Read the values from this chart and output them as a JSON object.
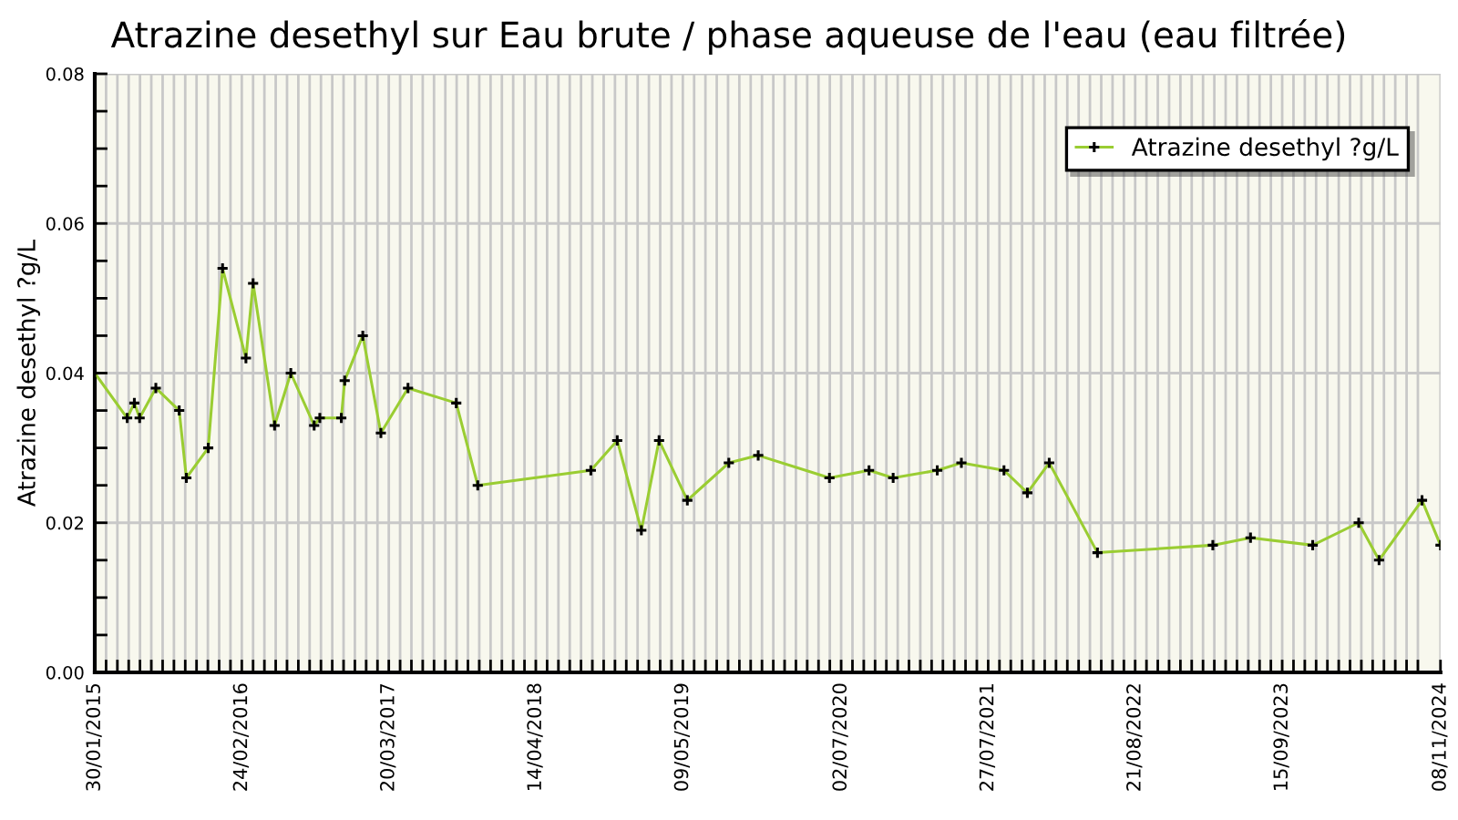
{
  "chart_data": {
    "type": "line",
    "title": "Atrazine desethyl sur Eau brute / phase aqueuse de l'eau (eau filtrée)",
    "ylabel": "Atrazine desethyl ?g/L",
    "x": [
      "2015-01-30",
      "2015-04-26",
      "2015-05-15",
      "2015-05-29",
      "2015-07-11",
      "2015-09-11",
      "2015-09-30",
      "2015-11-27",
      "2016-01-04",
      "2016-03-06",
      "2016-03-25",
      "2016-05-21",
      "2016-07-03",
      "2016-09-03",
      "2016-09-18",
      "2016-11-14",
      "2016-11-23",
      "2017-01-10",
      "2017-02-27",
      "2017-05-10",
      "2017-09-15",
      "2017-11-11",
      "2018-09-07",
      "2018-11-16",
      "2019-01-19",
      "2019-03-07",
      "2019-05-21",
      "2019-09-08",
      "2019-11-25",
      "2020-06-01",
      "2020-09-14",
      "2020-11-17",
      "2021-03-14",
      "2021-05-17",
      "2021-09-07",
      "2021-11-08",
      "2022-01-05",
      "2022-05-13",
      "2023-03-15",
      "2023-06-23",
      "2023-12-05",
      "2024-04-05",
      "2024-05-29",
      "2024-09-20",
      "2024-11-08"
    ],
    "series": [
      {
        "name": "Atrazine desethyl ?g/L",
        "color": "#9acd32",
        "values": [
          0.04,
          0.034,
          0.036,
          0.034,
          0.038,
          0.035,
          0.026,
          0.03,
          0.054,
          0.042,
          0.052,
          0.033,
          0.04,
          0.033,
          0.034,
          0.034,
          0.039,
          0.045,
          0.032,
          0.038,
          0.036,
          0.025,
          0.027,
          0.031,
          0.019,
          0.031,
          0.023,
          0.028,
          0.029,
          0.026,
          0.027,
          0.026,
          0.027,
          0.028,
          0.027,
          0.024,
          0.028,
          0.016,
          0.017,
          0.018,
          0.017,
          0.02,
          0.015,
          0.023,
          0.017
        ]
      }
    ],
    "marker": "cross",
    "line_style": "solid",
    "legend": "top right",
    "grid": true,
    "xlim": [
      "2015-01-30",
      "2024-11-08"
    ],
    "xticks": [
      {
        "value": "2015-01-30",
        "label": "30/01/2015"
      },
      {
        "value": "2015-03-01",
        "label": null
      },
      {
        "value": "2015-03-31",
        "label": null
      },
      {
        "value": "2015-04-30",
        "label": null
      },
      {
        "value": "2015-05-30",
        "label": null
      },
      {
        "value": "2015-06-29",
        "label": null
      },
      {
        "value": "2015-07-29",
        "label": null
      },
      {
        "value": "2015-08-28",
        "label": null
      },
      {
        "value": "2015-09-27",
        "label": null
      },
      {
        "value": "2015-10-27",
        "label": null
      },
      {
        "value": "2015-11-26",
        "label": null
      },
      {
        "value": "2015-12-26",
        "label": null
      },
      {
        "value": "2016-01-25",
        "label": null
      },
      {
        "value": "2016-02-24",
        "label": "24/02/2016"
      },
      {
        "value": "2016-03-25",
        "label": null
      },
      {
        "value": "2016-04-24",
        "label": null
      },
      {
        "value": "2016-05-24",
        "label": null
      },
      {
        "value": "2016-06-23",
        "label": null
      },
      {
        "value": "2016-07-23",
        "label": null
      },
      {
        "value": "2016-08-22",
        "label": null
      },
      {
        "value": "2016-09-21",
        "label": null
      },
      {
        "value": "2016-10-21",
        "label": null
      },
      {
        "value": "2016-11-20",
        "label": null
      },
      {
        "value": "2016-12-20",
        "label": null
      },
      {
        "value": "2017-01-19",
        "label": null
      },
      {
        "value": "2017-02-18",
        "label": null
      },
      {
        "value": "2017-03-20",
        "label": "20/03/2017"
      },
      {
        "value": "2017-04-19",
        "label": null
      },
      {
        "value": "2017-05-19",
        "label": null
      },
      {
        "value": "2017-06-18",
        "label": null
      },
      {
        "value": "2017-07-18",
        "label": null
      },
      {
        "value": "2017-08-17",
        "label": null
      },
      {
        "value": "2017-09-16",
        "label": null
      },
      {
        "value": "2017-10-16",
        "label": null
      },
      {
        "value": "2017-11-15",
        "label": null
      },
      {
        "value": "2017-12-15",
        "label": null
      },
      {
        "value": "2018-01-14",
        "label": null
      },
      {
        "value": "2018-02-13",
        "label": null
      },
      {
        "value": "2018-03-15",
        "label": null
      },
      {
        "value": "2018-04-14",
        "label": "14/04/2018"
      },
      {
        "value": "2018-05-14",
        "label": null
      },
      {
        "value": "2018-06-13",
        "label": null
      },
      {
        "value": "2018-07-13",
        "label": null
      },
      {
        "value": "2018-08-12",
        "label": null
      },
      {
        "value": "2018-09-11",
        "label": null
      },
      {
        "value": "2018-10-11",
        "label": null
      },
      {
        "value": "2018-11-10",
        "label": null
      },
      {
        "value": "2018-12-10",
        "label": null
      },
      {
        "value": "2019-01-09",
        "label": null
      },
      {
        "value": "2019-02-08",
        "label": null
      },
      {
        "value": "2019-03-10",
        "label": null
      },
      {
        "value": "2019-04-09",
        "label": null
      },
      {
        "value": "2019-05-09",
        "label": "09/05/2019"
      },
      {
        "value": "2019-06-08",
        "label": null
      },
      {
        "value": "2019-07-08",
        "label": null
      },
      {
        "value": "2019-08-07",
        "label": null
      },
      {
        "value": "2019-09-06",
        "label": null
      },
      {
        "value": "2019-10-06",
        "label": null
      },
      {
        "value": "2019-11-05",
        "label": null
      },
      {
        "value": "2019-12-05",
        "label": null
      },
      {
        "value": "2020-01-04",
        "label": null
      },
      {
        "value": "2020-02-03",
        "label": null
      },
      {
        "value": "2020-03-04",
        "label": null
      },
      {
        "value": "2020-04-03",
        "label": null
      },
      {
        "value": "2020-05-03",
        "label": null
      },
      {
        "value": "2020-06-02",
        "label": null
      },
      {
        "value": "2020-07-02",
        "label": "02/07/2020"
      },
      {
        "value": "2020-08-01",
        "label": null
      },
      {
        "value": "2020-08-31",
        "label": null
      },
      {
        "value": "2020-09-30",
        "label": null
      },
      {
        "value": "2020-10-30",
        "label": null
      },
      {
        "value": "2020-11-29",
        "label": null
      },
      {
        "value": "2020-12-29",
        "label": null
      },
      {
        "value": "2021-01-28",
        "label": null
      },
      {
        "value": "2021-02-27",
        "label": null
      },
      {
        "value": "2021-03-29",
        "label": null
      },
      {
        "value": "2021-04-28",
        "label": null
      },
      {
        "value": "2021-05-28",
        "label": null
      },
      {
        "value": "2021-06-27",
        "label": null
      },
      {
        "value": "2021-07-27",
        "label": "27/07/2021"
      },
      {
        "value": "2021-08-26",
        "label": null
      },
      {
        "value": "2021-09-25",
        "label": null
      },
      {
        "value": "2021-10-25",
        "label": null
      },
      {
        "value": "2021-11-24",
        "label": null
      },
      {
        "value": "2021-12-24",
        "label": null
      },
      {
        "value": "2022-01-23",
        "label": null
      },
      {
        "value": "2022-02-22",
        "label": null
      },
      {
        "value": "2022-03-24",
        "label": null
      },
      {
        "value": "2022-04-23",
        "label": null
      },
      {
        "value": "2022-05-23",
        "label": null
      },
      {
        "value": "2022-06-22",
        "label": null
      },
      {
        "value": "2022-07-22",
        "label": null
      },
      {
        "value": "2022-08-21",
        "label": "21/08/2022"
      },
      {
        "value": "2022-09-20",
        "label": null
      },
      {
        "value": "2022-10-20",
        "label": null
      },
      {
        "value": "2022-11-19",
        "label": null
      },
      {
        "value": "2022-12-19",
        "label": null
      },
      {
        "value": "2023-01-18",
        "label": null
      },
      {
        "value": "2023-02-17",
        "label": null
      },
      {
        "value": "2023-03-19",
        "label": null
      },
      {
        "value": "2023-04-18",
        "label": null
      },
      {
        "value": "2023-05-18",
        "label": null
      },
      {
        "value": "2023-06-17",
        "label": null
      },
      {
        "value": "2023-07-17",
        "label": null
      },
      {
        "value": "2023-08-16",
        "label": null
      },
      {
        "value": "2023-09-15",
        "label": "15/09/2023"
      },
      {
        "value": "2023-10-15",
        "label": null
      },
      {
        "value": "2023-11-14",
        "label": null
      },
      {
        "value": "2023-12-14",
        "label": null
      },
      {
        "value": "2024-01-13",
        "label": null
      },
      {
        "value": "2024-02-12",
        "label": null
      },
      {
        "value": "2024-03-13",
        "label": null
      },
      {
        "value": "2024-04-12",
        "label": null
      },
      {
        "value": "2024-05-12",
        "label": null
      },
      {
        "value": "2024-06-11",
        "label": null
      },
      {
        "value": "2024-07-11",
        "label": null
      },
      {
        "value": "2024-08-10",
        "label": null
      },
      {
        "value": "2024-09-09",
        "label": null
      },
      {
        "value": "2024-11-08",
        "label": "08/11/2024"
      }
    ],
    "ylim": [
      0,
      0.08
    ],
    "yticks": [
      {
        "value": 0,
        "label": "0.00"
      },
      {
        "value": 0.005,
        "label": null
      },
      {
        "value": 0.01,
        "label": null
      },
      {
        "value": 0.015,
        "label": null
      },
      {
        "value": 0.02,
        "label": "0.02"
      },
      {
        "value": 0.025,
        "label": null
      },
      {
        "value": 0.03,
        "label": null
      },
      {
        "value": 0.035,
        "label": null
      },
      {
        "value": 0.04,
        "label": "0.04"
      },
      {
        "value": 0.045,
        "label": null
      },
      {
        "value": 0.05,
        "label": null
      },
      {
        "value": 0.055,
        "label": null
      },
      {
        "value": 0.06,
        "label": "0.06"
      },
      {
        "value": 0.065,
        "label": null
      },
      {
        "value": 0.07,
        "label": null
      },
      {
        "value": 0.075,
        "label": null
      },
      {
        "value": 0.08,
        "label": "0.08"
      }
    ]
  }
}
